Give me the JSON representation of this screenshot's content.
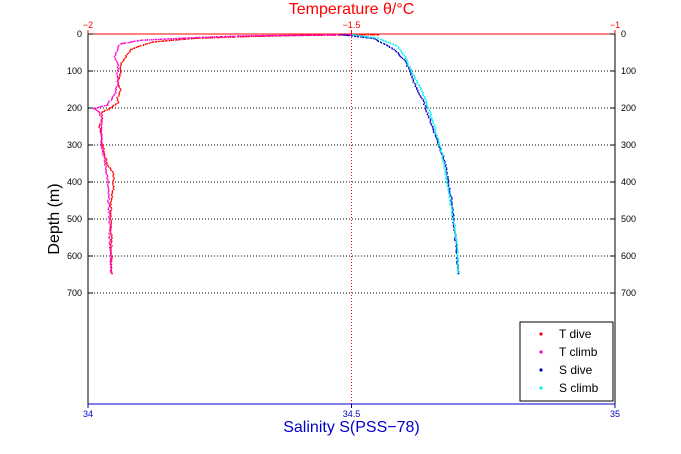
{
  "chart_data": {
    "type": "scatter",
    "title": "",
    "top_axis": {
      "label": "Temperature θ/°C",
      "ticks": [
        "−2",
        "−1.5",
        "−1"
      ],
      "values": [
        -2,
        -1.5,
        -1
      ],
      "range": [
        -2,
        -1
      ],
      "color": "#ff0000"
    },
    "bottom_axis": {
      "label": "Salinity S(PSS−78)",
      "ticks": [
        "34",
        "34.5",
        "35"
      ],
      "values": [
        34,
        34.5,
        35
      ],
      "range": [
        34,
        35
      ],
      "color": "#0000cc"
    },
    "y_axis": {
      "label": "Depth (m)",
      "ticks": [
        "0",
        "100",
        "200",
        "300",
        "400",
        "500",
        "600",
        "700"
      ],
      "values": [
        0,
        100,
        200,
        300,
        400,
        500,
        600,
        700
      ],
      "range": [
        0,
        1000
      ],
      "reversed": true,
      "grid": "dotted",
      "duplicate_right_labels": true
    },
    "center_line": {
      "temperature": -1.5,
      "style": "dotted",
      "color": "#ff0000"
    },
    "legend": {
      "position": "bottom-right"
    },
    "series": [
      {
        "name": "T dive",
        "axis": "temperature",
        "color": "#ff0000",
        "points": [
          [
            -1.45,
            0
          ],
          [
            -1.6,
            2
          ],
          [
            -1.7,
            5
          ],
          [
            -1.8,
            10
          ],
          [
            -1.88,
            20
          ],
          [
            -1.92,
            40
          ],
          [
            -1.93,
            60
          ],
          [
            -1.94,
            80
          ],
          [
            -1.94,
            100
          ],
          [
            -1.945,
            130
          ],
          [
            -1.94,
            150
          ],
          [
            -1.945,
            170
          ],
          [
            -1.945,
            185
          ],
          [
            -1.96,
            200
          ],
          [
            -1.975,
            210
          ],
          [
            -1.975,
            230
          ],
          [
            -1.98,
            250
          ],
          [
            -1.975,
            270
          ],
          [
            -1.975,
            290
          ],
          [
            -1.97,
            320
          ],
          [
            -1.965,
            350
          ],
          [
            -1.955,
            370
          ],
          [
            -1.953,
            390
          ],
          [
            -1.953,
            410
          ],
          [
            -1.955,
            430
          ],
          [
            -1.958,
            450
          ],
          [
            -1.958,
            500
          ],
          [
            -1.957,
            550
          ],
          [
            -1.957,
            600
          ],
          [
            -1.956,
            650
          ]
        ]
      },
      {
        "name": "T climb",
        "axis": "temperature",
        "color": "#ff00cc",
        "points": [
          [
            -1.5,
            0
          ],
          [
            -1.7,
            3
          ],
          [
            -1.8,
            8
          ],
          [
            -1.9,
            15
          ],
          [
            -1.94,
            25
          ],
          [
            -1.945,
            40
          ],
          [
            -1.95,
            60
          ],
          [
            -1.945,
            80
          ],
          [
            -1.945,
            100
          ],
          [
            -1.945,
            130
          ],
          [
            -1.95,
            160
          ],
          [
            -1.96,
            180
          ],
          [
            -1.965,
            190
          ],
          [
            -1.99,
            200
          ],
          [
            -1.98,
            210
          ],
          [
            -1.975,
            230
          ],
          [
            -1.975,
            260
          ],
          [
            -1.975,
            300
          ],
          [
            -1.97,
            340
          ],
          [
            -1.965,
            380
          ],
          [
            -1.963,
            420
          ],
          [
            -1.962,
            460
          ],
          [
            -1.96,
            500
          ],
          [
            -1.96,
            550
          ],
          [
            -1.958,
            600
          ],
          [
            -1.957,
            650
          ]
        ]
      },
      {
        "name": "S dive",
        "axis": "salinity",
        "color": "#0000cc",
        "points": [
          [
            34.48,
            0
          ],
          [
            34.54,
            10
          ],
          [
            34.58,
            40
          ],
          [
            34.6,
            70
          ],
          [
            34.61,
            100
          ],
          [
            34.62,
            140
          ],
          [
            34.635,
            180
          ],
          [
            34.645,
            220
          ],
          [
            34.655,
            260
          ],
          [
            34.665,
            300
          ],
          [
            34.675,
            340
          ],
          [
            34.68,
            380
          ],
          [
            34.685,
            420
          ],
          [
            34.69,
            460
          ],
          [
            34.692,
            500
          ],
          [
            34.695,
            540
          ],
          [
            34.698,
            580
          ],
          [
            34.7,
            620
          ],
          [
            34.701,
            650
          ]
        ]
      },
      {
        "name": "S climb",
        "axis": "salinity",
        "color": "#00eeee",
        "points": [
          [
            34.5,
            0
          ],
          [
            34.55,
            10
          ],
          [
            34.585,
            30
          ],
          [
            34.6,
            60
          ],
          [
            34.61,
            90
          ],
          [
            34.62,
            120
          ],
          [
            34.635,
            160
          ],
          [
            34.645,
            200
          ],
          [
            34.655,
            240
          ],
          [
            34.662,
            280
          ],
          [
            34.67,
            320
          ],
          [
            34.675,
            360
          ],
          [
            34.68,
            400
          ],
          [
            34.685,
            440
          ],
          [
            34.69,
            480
          ],
          [
            34.695,
            520
          ],
          [
            34.698,
            560
          ],
          [
            34.7,
            600
          ],
          [
            34.701,
            650
          ]
        ]
      }
    ]
  }
}
